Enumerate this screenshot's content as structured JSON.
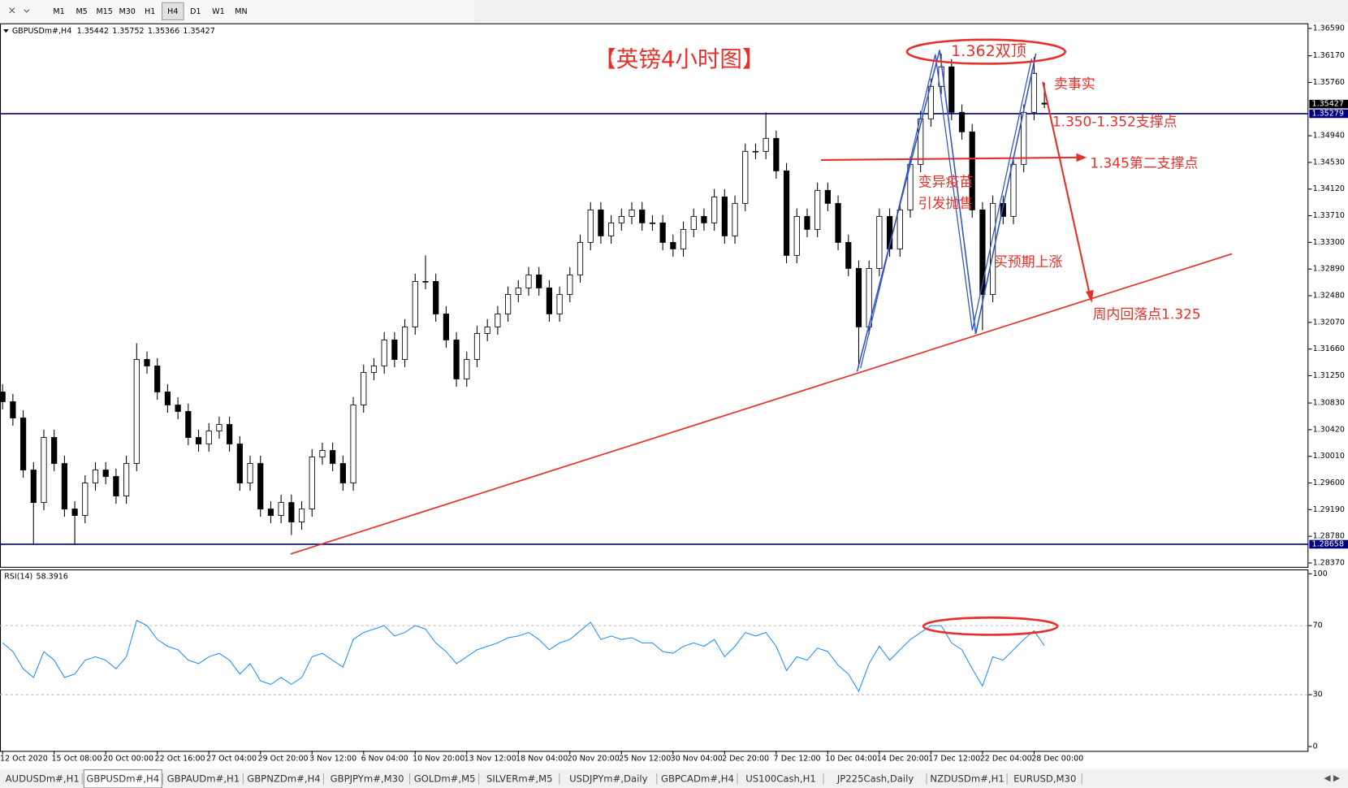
{
  "toolbar": {
    "timeframes": [
      "M1",
      "M5",
      "M15",
      "M30",
      "H1",
      "H4",
      "D1",
      "W1",
      "MN"
    ],
    "active": 5
  },
  "chart_data": [
    {
      "type": "candlestick",
      "symbol": "GBPUSDm#,H4",
      "title": "【英镑4小时图】",
      "open": [
        1.31,
        1.3085,
        1.306,
        1.298,
        1.293,
        1.303,
        1.299,
        1.292,
        1.291,
        1.296,
        1.298,
        1.297,
        1.294,
        1.299,
        1.315,
        1.314,
        1.31,
        1.308,
        1.307,
        1.303,
        1.302,
        1.304,
        1.305,
        1.302,
        1.296,
        1.299,
        1.292,
        1.291,
        1.293,
        1.29,
        1.292,
        1.3,
        1.301,
        1.299,
        1.296,
        1.308,
        1.313,
        1.314,
        1.318,
        1.315,
        1.32,
        1.327,
        1.327,
        1.322,
        1.318,
        1.312,
        1.315,
        1.319,
        1.32,
        1.322,
        1.325,
        1.326,
        1.328,
        1.326,
        1.322,
        1.325,
        1.328,
        1.333,
        1.338,
        1.334,
        1.336,
        1.337,
        1.338,
        1.336,
        1.336,
        1.333,
        1.332,
        1.335,
        1.337,
        1.336,
        1.34,
        1.334,
        1.339,
        1.347,
        1.347,
        1.349,
        1.344,
        1.331,
        1.337,
        1.335,
        1.341,
        1.339,
        1.333,
        1.329,
        1.32,
        1.329,
        1.337,
        1.332,
        1.338,
        1.345,
        1.352,
        1.357,
        1.36,
        1.353,
        1.35,
        1.338,
        1.325,
        1.339,
        1.337,
        1.345,
        1.353,
        1.35442
      ],
      "high": [
        1.3112,
        1.3097,
        1.3072,
        1.2992,
        1.3042,
        1.3042,
        1.3002,
        1.2932,
        1.2972,
        1.2992,
        1.2992,
        1.2982,
        1.3002,
        1.3175,
        1.3162,
        1.3152,
        1.3112,
        1.3092,
        1.3082,
        1.3042,
        1.3052,
        1.3062,
        1.3062,
        1.3032,
        1.3002,
        1.3002,
        1.2932,
        1.2942,
        1.2942,
        1.2932,
        1.3012,
        1.3022,
        1.3022,
        1.3002,
        1.3092,
        1.3142,
        1.3152,
        1.3192,
        1.3192,
        1.3212,
        1.3282,
        1.331,
        1.3282,
        1.3232,
        1.3192,
        1.3162,
        1.3202,
        1.3212,
        1.3232,
        1.3262,
        1.3272,
        1.3292,
        1.3292,
        1.3272,
        1.3262,
        1.3292,
        1.3342,
        1.3392,
        1.3392,
        1.3372,
        1.3382,
        1.3392,
        1.3392,
        1.3372,
        1.3372,
        1.3342,
        1.3362,
        1.3382,
        1.3382,
        1.3412,
        1.3412,
        1.3402,
        1.3482,
        1.3482,
        1.353,
        1.3502,
        1.3452,
        1.3382,
        1.3382,
        1.3422,
        1.3422,
        1.3402,
        1.3342,
        1.3302,
        1.3302,
        1.3382,
        1.3382,
        1.3392,
        1.3462,
        1.3532,
        1.3582,
        1.362,
        1.3612,
        1.3542,
        1.3512,
        1.3392,
        1.3402,
        1.3402,
        1.3462,
        1.3542,
        1.3615,
        1.35752
      ],
      "low": [
        1.3073,
        1.3048,
        1.2968,
        1.2865,
        1.2918,
        1.2978,
        1.2908,
        1.2865,
        1.2898,
        1.2948,
        1.2958,
        1.2928,
        1.2928,
        1.2978,
        1.3128,
        1.3088,
        1.3068,
        1.3058,
        1.3018,
        1.3008,
        1.3008,
        1.3028,
        1.3008,
        1.2948,
        1.2948,
        1.2908,
        1.2898,
        1.2898,
        1.288,
        1.2888,
        1.2908,
        1.2988,
        1.2978,
        1.2948,
        1.2948,
        1.3068,
        1.3118,
        1.3128,
        1.3138,
        1.3138,
        1.3188,
        1.3258,
        1.3208,
        1.3168,
        1.3108,
        1.3108,
        1.3138,
        1.3178,
        1.3188,
        1.3208,
        1.3238,
        1.3248,
        1.3248,
        1.3208,
        1.3208,
        1.3238,
        1.3268,
        1.3318,
        1.3328,
        1.3328,
        1.3348,
        1.3358,
        1.3348,
        1.3348,
        1.3318,
        1.3308,
        1.3308,
        1.3338,
        1.3348,
        1.3348,
        1.3328,
        1.3328,
        1.3378,
        1.3458,
        1.3458,
        1.3428,
        1.3298,
        1.3298,
        1.3338,
        1.3338,
        1.3378,
        1.3318,
        1.3278,
        1.314,
        1.3188,
        1.3278,
        1.3308,
        1.3308,
        1.3368,
        1.3438,
        1.3508,
        1.3558,
        1.3518,
        1.3488,
        1.3368,
        1.3195,
        1.3238,
        1.3358,
        1.3358,
        1.3438,
        1.3518,
        1.35366
      ],
      "close": [
        1.3085,
        1.306,
        1.298,
        1.293,
        1.303,
        1.299,
        1.292,
        1.291,
        1.296,
        1.298,
        1.297,
        1.294,
        1.299,
        1.315,
        1.314,
        1.31,
        1.308,
        1.307,
        1.303,
        1.302,
        1.304,
        1.305,
        1.302,
        1.296,
        1.299,
        1.292,
        1.291,
        1.293,
        1.29,
        1.292,
        1.3,
        1.301,
        1.299,
        1.296,
        1.308,
        1.313,
        1.314,
        1.318,
        1.315,
        1.32,
        1.327,
        1.327,
        1.322,
        1.318,
        1.312,
        1.315,
        1.319,
        1.32,
        1.322,
        1.325,
        1.326,
        1.328,
        1.326,
        1.322,
        1.325,
        1.328,
        1.333,
        1.338,
        1.334,
        1.336,
        1.337,
        1.338,
        1.336,
        1.336,
        1.333,
        1.332,
        1.335,
        1.337,
        1.336,
        1.34,
        1.334,
        1.339,
        1.347,
        1.347,
        1.349,
        1.344,
        1.331,
        1.337,
        1.335,
        1.341,
        1.339,
        1.333,
        1.329,
        1.32,
        1.329,
        1.337,
        1.332,
        1.338,
        1.345,
        1.352,
        1.357,
        1.36,
        1.353,
        1.35,
        1.338,
        1.325,
        1.339,
        1.337,
        1.345,
        1.353,
        1.359,
        1.35427
      ],
      "color_up": "#ffffff",
      "color_down": "#000000",
      "xlim": [
        -0.25,
        126.6
      ],
      "xticks": [
        {
          "value": 0,
          "label": "12 Oct 2020"
        },
        {
          "value": 5,
          "label": "15 Oct 08:00"
        },
        {
          "value": 10,
          "label": "20 Oct 00:00"
        },
        {
          "value": 15,
          "label": "22 Oct 16:00"
        },
        {
          "value": 20,
          "label": "27 Oct 04:00"
        },
        {
          "value": 25,
          "label": "29 Oct 20:00"
        },
        {
          "value": 30,
          "label": "3 Nov 12:00"
        },
        {
          "value": 35,
          "label": "6 Nov 04:00"
        },
        {
          "value": 40,
          "label": "10 Nov 20:00"
        },
        {
          "value": 45,
          "label": "13 Nov 12:00"
        },
        {
          "value": 50,
          "label": "18 Nov 04:00"
        },
        {
          "value": 55,
          "label": "20 Nov 20:00"
        },
        {
          "value": 60,
          "label": "25 Nov 12:00"
        },
        {
          "value": 65,
          "label": "30 Nov 04:00"
        },
        {
          "value": 70,
          "label": "2 Dec 20:00"
        },
        {
          "value": 75,
          "label": "7 Dec 12:00"
        },
        {
          "value": 80,
          "label": "10 Dec 04:00"
        },
        {
          "value": 85,
          "label": "14 Dec 20:00"
        },
        {
          "value": 90,
          "label": "17 Dec 12:00"
        },
        {
          "value": 95,
          "label": "22 Dec 04:00"
        },
        {
          "value": 100,
          "label": "28 Dec 00:00"
        }
      ],
      "ylim": [
        1.28297,
        1.36669
      ],
      "yticks": [
        {
          "value": 1.3659,
          "label": "1.36590"
        },
        {
          "value": 1.3617,
          "label": "1.36170"
        },
        {
          "value": 1.3576,
          "label": "1.35760"
        },
        {
          "value": 1.3494,
          "label": "1.34940"
        },
        {
          "value": 1.3453,
          "label": "1.34530"
        },
        {
          "value": 1.3412,
          "label": "1.34120"
        },
        {
          "value": 1.3371,
          "label": "1.33710"
        },
        {
          "value": 1.333,
          "label": "1.33300"
        },
        {
          "value": 1.3289,
          "label": "1.32890"
        },
        {
          "value": 1.3248,
          "label": "1.32480"
        },
        {
          "value": 1.3207,
          "label": "1.32070"
        },
        {
          "value": 1.3166,
          "label": "1.31660"
        },
        {
          "value": 1.3125,
          "label": "1.31250"
        },
        {
          "value": 1.3083,
          "label": "1.30830"
        },
        {
          "value": 1.3042,
          "label": "1.30420"
        },
        {
          "value": 1.3001,
          "label": "1.30010"
        },
        {
          "value": 1.296,
          "label": "1.29600"
        },
        {
          "value": 1.2919,
          "label": "1.29190"
        },
        {
          "value": 1.2878,
          "label": "1.28780"
        },
        {
          "value": 1.2837,
          "label": "1.28370"
        }
      ],
      "hlines": [
        {
          "value": 1.35279,
          "color": "#000080"
        },
        {
          "value": 1.28658,
          "color": "#000080"
        }
      ],
      "annotations": [
        "1.362双顶",
        "卖事实",
        "1.350-1.352支撑点",
        "1.345第二支撑点",
        "变异疫苗",
        "引发抛售",
        "买预期上涨",
        "周内回落点1.325"
      ]
    },
    {
      "type": "line",
      "title": "RSI(14)",
      "color": "#1e90ff",
      "values": [
        60,
        55,
        45,
        40,
        55,
        50,
        40,
        42,
        50,
        52,
        50,
        45,
        52,
        73,
        70,
        62,
        58,
        56,
        50,
        48,
        52,
        54,
        50,
        42,
        48,
        38,
        36,
        40,
        36,
        40,
        52,
        54,
        50,
        46,
        62,
        66,
        68,
        70,
        64,
        66,
        70,
        68,
        60,
        55,
        48,
        52,
        56,
        58,
        60,
        63,
        64,
        66,
        62,
        56,
        60,
        62,
        67,
        72,
        62,
        64,
        62,
        63,
        60,
        60,
        55,
        54,
        58,
        60,
        58,
        62,
        52,
        58,
        66,
        64,
        66,
        58,
        44,
        52,
        50,
        57,
        55,
        47,
        42,
        32,
        48,
        58,
        50,
        56,
        62,
        66,
        70,
        70,
        60,
        56,
        45,
        35,
        52,
        50,
        56,
        62,
        67,
        58.3916
      ],
      "ylim": [
        -2.5,
        102.5
      ],
      "yticks": [
        0,
        30,
        70,
        100
      ],
      "levels": [
        30,
        70
      ]
    }
  ],
  "tabs": [
    "AUDUSDm#,H1",
    "GBPUSDm#,H4",
    "GBPAUDm#,H1",
    "GBPNZDm#,H4",
    "GBPJPYm#,M30",
    "GOLDm#,M5",
    "SILVERm#,M5",
    "USDJPYm#,Daily",
    "GBPCADm#,H4",
    "US100Cash,H1",
    "JP225Cash,Daily",
    "NZDUSDm#,H1",
    "EURUSD,M30"
  ],
  "active_tab": 1
}
